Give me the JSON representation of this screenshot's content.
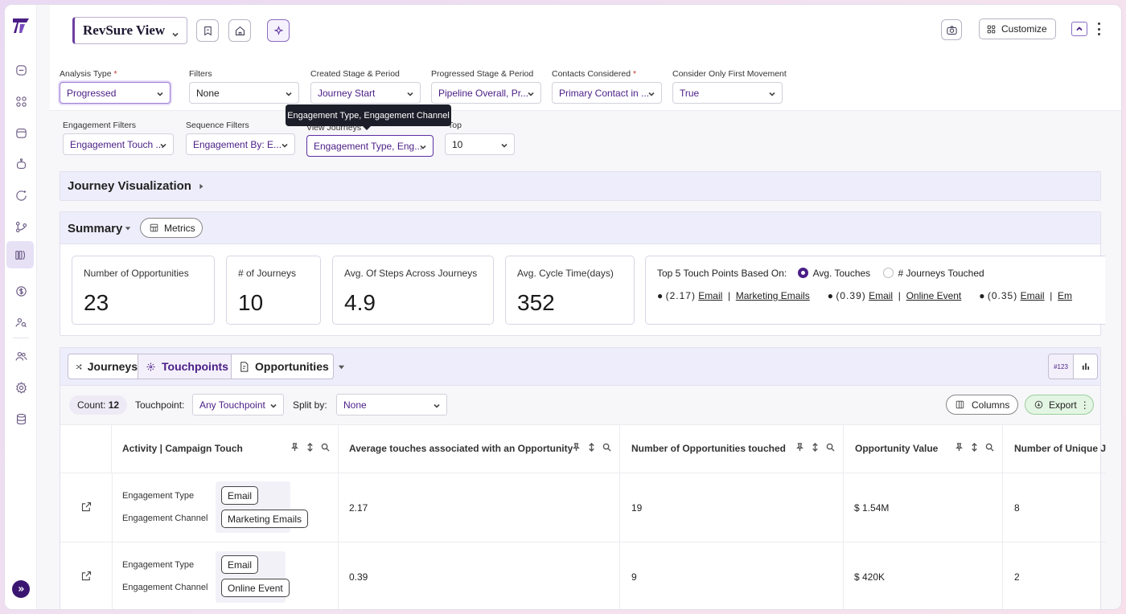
{
  "header": {
    "view_name": "RevSure View",
    "customize_label": "Customize"
  },
  "filters": {
    "analysis_type": {
      "label": "Analysis Type",
      "required": "*",
      "value": "Progressed"
    },
    "filters": {
      "label": "Filters",
      "value": "None"
    },
    "created_stage": {
      "label": "Created Stage & Period",
      "value": "Journey Start"
    },
    "progressed_stage": {
      "label": "Progressed Stage & Period",
      "value": "Pipeline Overall, Pr..."
    },
    "contacts": {
      "label": "Contacts Considered",
      "required": "*",
      "value": "Primary Contact in ..."
    },
    "first_movement": {
      "label": "Consider Only First Movement",
      "value": "True"
    },
    "engagement_filters": {
      "label": "Engagement Filters",
      "value": "Engagement Touch ..."
    },
    "sequence_filters": {
      "label": "Sequence Filters",
      "value": "Engagement By: E..."
    },
    "view_journeys": {
      "label": "View Journeys",
      "value": "Engagement Type, Eng..."
    },
    "top": {
      "label": "Top",
      "value": "10"
    },
    "tooltip": "Engagement Type, Engagement Channel"
  },
  "journey_viz": {
    "title": "Journey Visualization"
  },
  "summary": {
    "title": "Summary",
    "metrics_label": "Metrics",
    "cards": [
      {
        "title": "Number of Opportunities",
        "value": "23"
      },
      {
        "title": "# of Journeys",
        "value": "10"
      },
      {
        "title": "Avg. Of Steps Across Journeys",
        "value": "4.9"
      },
      {
        "title": "Avg. Cycle Time(days)",
        "value": "352"
      }
    ],
    "top5": {
      "title": "Top 5 Touch Points Based On:",
      "option_a": "Avg. Touches",
      "option_b": "# Journeys Touched",
      "items": [
        {
          "score": "(2.17)",
          "type": "Email",
          "channel": "Marketing Emails"
        },
        {
          "score": "(0.39)",
          "type": "Email",
          "channel": "Online Event"
        },
        {
          "score": "(0.35)",
          "type": "Email",
          "channel": "Em"
        }
      ]
    }
  },
  "tabs": {
    "journeys": "Journeys",
    "touchpoints": "Touchpoints",
    "opportunities": "Opportunities",
    "num_label": "#123"
  },
  "toolbar": {
    "count_label": "Count:",
    "count_value": "12",
    "touchpoint_label": "Touchpoint:",
    "touchpoint_value": "Any Touchpoint",
    "split_label": "Split by:",
    "split_value": "None",
    "columns_label": "Columns",
    "export_label": "Export"
  },
  "table": {
    "columns": [
      "Activity | Campaign Touch",
      "Average touches associated with an Opportunity",
      "Number of Opportunities touched",
      "Opportunity Value",
      "Number of Unique Jo"
    ],
    "type_label": "Engagement Type",
    "channel_label": "Engagement Channel",
    "rows": [
      {
        "type": "Email",
        "channel": "Marketing Emails",
        "avg": "2.17",
        "opps": "19",
        "value": "$ 1.54M",
        "unique": "8"
      },
      {
        "type": "Email",
        "channel": "Online Event",
        "avg": "0.39",
        "opps": "9",
        "value": "$ 420K",
        "unique": "2"
      }
    ]
  }
}
